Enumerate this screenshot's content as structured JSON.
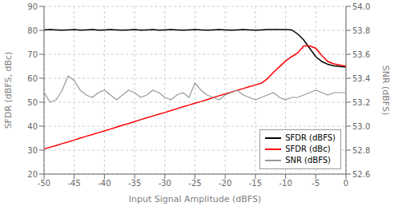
{
  "chart_data": {
    "type": "line",
    "x_label": "Input Signal Amplitude (dBFS)",
    "y_label": "SFDR (dBFS, dBc)",
    "y2_label": "SNR (dBFS)",
    "x": [
      -50,
      -49,
      -48,
      -47,
      -46,
      -45,
      -44,
      -43,
      -42,
      -41,
      -40,
      -39,
      -38,
      -37,
      -36,
      -35,
      -34,
      -33,
      -32,
      -31,
      -30,
      -29,
      -28,
      -27,
      -26,
      -25,
      -24,
      -23,
      -22,
      -21,
      -20,
      -19,
      -18,
      -17,
      -16,
      -15,
      -14,
      -13,
      -12,
      -11,
      -10,
      -9,
      -8,
      -7,
      -6,
      -5,
      -4,
      -3,
      -2,
      -1,
      0
    ],
    "series": [
      {
        "name": "SFDR (dBFS)",
        "color": "black",
        "axis": "y",
        "values": [
          80.2,
          80.3,
          80.2,
          80.1,
          80.2,
          80.3,
          80.1,
          80.2,
          80.3,
          80.1,
          80.2,
          80.3,
          80.2,
          80.1,
          80.2,
          80.3,
          80.1,
          80.2,
          80.3,
          80.1,
          80.2,
          80.3,
          80.2,
          80.1,
          80.2,
          80.3,
          80.2,
          80.1,
          80.2,
          80.3,
          80.2,
          80.1,
          80.2,
          80.3,
          80.2,
          80.1,
          80.2,
          80.3,
          80.3,
          80.3,
          80.3,
          80.2,
          78.5,
          76.0,
          72.5,
          69.0,
          67.0,
          65.8,
          65.2,
          64.9,
          64.7
        ]
      },
      {
        "name": "SFDR (dBc)",
        "color": "red",
        "axis": "y",
        "values": [
          30.5,
          31.2,
          31.9,
          32.7,
          33.4,
          34.2,
          35.0,
          35.8,
          36.5,
          37.3,
          38.0,
          38.8,
          39.6,
          40.4,
          41.1,
          41.9,
          42.7,
          43.5,
          44.2,
          45.0,
          45.7,
          46.5,
          47.3,
          48.1,
          48.8,
          49.6,
          50.3,
          51.1,
          51.9,
          52.7,
          53.4,
          54.2,
          55.0,
          55.7,
          56.5,
          57.2,
          58.0,
          59.8,
          62.5,
          64.8,
          67.2,
          69.0,
          70.5,
          73.5,
          73.5,
          72.5,
          69.5,
          67.0,
          66.0,
          65.5,
          65.0
        ]
      },
      {
        "name": "SNR (dBFS)",
        "color": "#999999",
        "axis": "y2",
        "values": [
          53.28,
          53.2,
          53.22,
          53.3,
          53.42,
          53.38,
          53.3,
          53.26,
          53.24,
          53.28,
          53.3,
          53.26,
          53.22,
          53.26,
          53.3,
          53.28,
          53.24,
          53.26,
          53.3,
          53.28,
          53.24,
          53.22,
          53.26,
          53.28,
          53.24,
          53.36,
          53.3,
          53.26,
          53.24,
          53.22,
          53.26,
          53.28,
          53.3,
          53.26,
          53.24,
          53.22,
          53.24,
          53.26,
          53.28,
          53.24,
          53.22,
          53.24,
          53.24,
          53.26,
          53.28,
          53.3,
          53.28,
          53.26,
          53.28,
          53.28,
          53.28
        ]
      }
    ],
    "xlim": [
      -50,
      0
    ],
    "xticks": [
      -50,
      -45,
      -40,
      -35,
      -30,
      -25,
      -20,
      -15,
      -10,
      -5,
      0
    ],
    "ylim": [
      20,
      90
    ],
    "yticks": [
      20,
      30,
      40,
      50,
      60,
      70,
      80,
      90
    ],
    "y2lim": [
      52.6,
      54.0
    ],
    "y2ticks": [
      52.6,
      52.8,
      {
        "value": 53.0,
        "label": "53.0"
      },
      53.2,
      53.4,
      53.6,
      53.8,
      {
        "value": 54.0,
        "label": "54.0"
      }
    ],
    "grid": true,
    "legend": "lower right"
  }
}
